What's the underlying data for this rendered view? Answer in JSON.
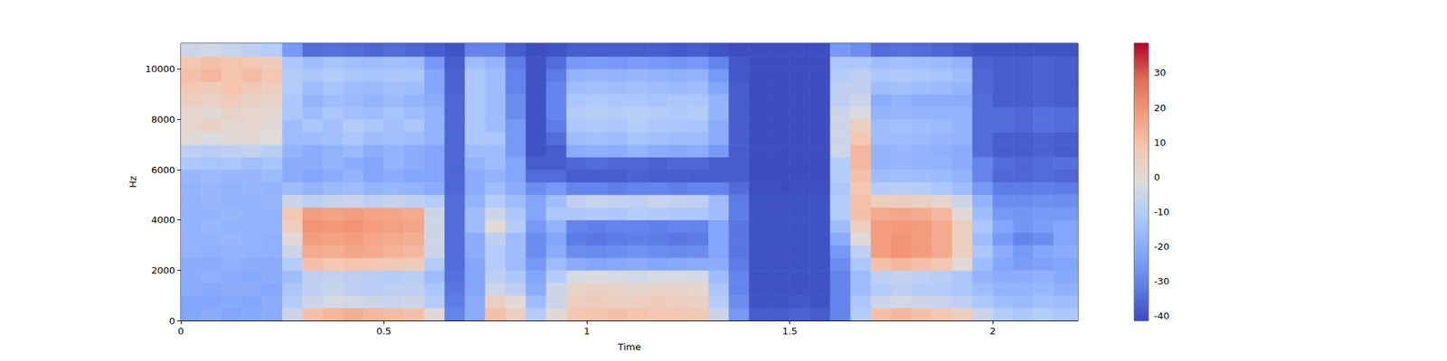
{
  "chart_data": {
    "type": "heatmap",
    "x_label": "Time",
    "y_label": "Hz",
    "x": [
      0,
      0.05,
      0.1,
      0.15,
      0.2,
      0.25,
      0.3,
      0.35,
      0.4,
      0.45,
      0.5,
      0.55,
      0.6,
      0.65,
      0.7,
      0.75,
      0.8,
      0.85,
      0.9,
      0.95,
      1,
      1.05,
      1.1,
      1.15,
      1.2,
      1.25,
      1.3,
      1.35,
      1.4,
      1.45,
      1.5,
      1.55,
      1.6,
      1.65,
      1.7,
      1.75,
      1.8,
      1.85,
      1.9,
      1.95,
      2,
      2.05,
      2.1,
      2.15,
      2.21
    ],
    "y": [
      0,
      500,
      1000,
      1500,
      2000,
      2500,
      3000,
      3500,
      4000,
      4500,
      5000,
      5500,
      6000,
      6500,
      7000,
      7500,
      8000,
      8500,
      9000,
      9500,
      10000,
      10500,
      11025
    ],
    "z": [
      [
        -22,
        -20,
        -22,
        -21,
        -20,
        -5,
        10,
        12,
        14,
        12,
        11,
        10,
        0,
        -30,
        -20,
        10,
        5,
        -10,
        0,
        8,
        9,
        10,
        9,
        8,
        8,
        7,
        -5,
        -25,
        -38,
        -38,
        -37,
        -38,
        -30,
        -10,
        10,
        12,
        10,
        8,
        5,
        -5,
        -10,
        -12,
        -10,
        -12
      ],
      [
        -22,
        -22,
        -21,
        -22,
        -20,
        -10,
        -5,
        -3,
        -4,
        -5,
        -6,
        -5,
        -10,
        -32,
        -20,
        5,
        0,
        -15,
        -5,
        5,
        6,
        5,
        5,
        6,
        5,
        4,
        -10,
        -28,
        -40,
        -40,
        -39,
        -40,
        -30,
        -12,
        -5,
        -4,
        -5,
        -6,
        -8,
        -12,
        -15,
        -16,
        -14,
        -15
      ],
      [
        -20,
        -21,
        -20,
        -20,
        -21,
        -12,
        -8,
        -6,
        -8,
        -9,
        -8,
        -8,
        -12,
        -33,
        -22,
        -5,
        -8,
        -20,
        -5,
        3,
        4,
        3,
        2,
        3,
        3,
        2,
        -12,
        -30,
        -40,
        -40,
        -40,
        -40,
        -30,
        -15,
        -10,
        -8,
        -10,
        -10,
        -12,
        -15,
        -18,
        -18,
        -17,
        -19
      ],
      [
        -20,
        -19,
        -20,
        -21,
        -20,
        -15,
        -8,
        -7,
        -8,
        -9,
        -10,
        -9,
        -15,
        -34,
        -22,
        -8,
        -12,
        -22,
        -10,
        -3,
        -2,
        -3,
        -4,
        -3,
        -3,
        -4,
        -15,
        -30,
        -40,
        -40,
        -40,
        -40,
        -30,
        -15,
        -8,
        -7,
        -8,
        -9,
        -12,
        -18,
        -20,
        -20,
        -19,
        -21
      ],
      [
        -20,
        -20,
        -19,
        -20,
        -20,
        -10,
        10,
        8,
        9,
        8,
        7,
        6,
        -10,
        -35,
        -22,
        -10,
        -15,
        -25,
        -15,
        -20,
        -22,
        -21,
        -20,
        -22,
        -21,
        -20,
        -20,
        -32,
        -40,
        -40,
        -40,
        -40,
        -28,
        -12,
        10,
        12,
        10,
        8,
        0,
        -15,
        -22,
        -24,
        -23,
        -22
      ],
      [
        -18,
        -19,
        -18,
        -18,
        -19,
        -5,
        15,
        14,
        16,
        15,
        13,
        12,
        -5,
        -35,
        -20,
        -10,
        -15,
        -28,
        -20,
        -28,
        -29,
        -28,
        -27,
        -28,
        -29,
        -28,
        -22,
        -33,
        -40,
        -40,
        -40,
        -40,
        -25,
        -8,
        18,
        20,
        18,
        15,
        5,
        -12,
        -20,
        -25,
        -22,
        -20
      ],
      [
        -18,
        -18,
        -17,
        -18,
        -19,
        0,
        18,
        17,
        18,
        16,
        15,
        14,
        -5,
        -35,
        -20,
        -8,
        -15,
        -28,
        -22,
        -32,
        -33,
        -32,
        -31,
        -32,
        -33,
        -32,
        -22,
        -33,
        -40,
        -40,
        -40,
        -40,
        -20,
        0,
        18,
        20,
        18,
        15,
        5,
        -15,
        -25,
        -30,
        -28,
        -22
      ],
      [
        -18,
        -17,
        -18,
        -18,
        -18,
        5,
        20,
        19,
        20,
        18,
        17,
        16,
        -5,
        -35,
        -15,
        0,
        -10,
        -25,
        -18,
        -30,
        -31,
        -30,
        -30,
        -31,
        -30,
        -30,
        -22,
        -33,
        -40,
        -40,
        -40,
        -40,
        -15,
        5,
        18,
        19,
        18,
        15,
        5,
        -12,
        -22,
        -26,
        -24,
        -22
      ],
      [
        -18,
        -18,
        -17,
        -18,
        -18,
        8,
        18,
        17,
        18,
        17,
        16,
        15,
        -5,
        -35,
        -15,
        -5,
        -12,
        -22,
        -12,
        -12,
        -11,
        -12,
        -10,
        -11,
        -12,
        -12,
        -15,
        -32,
        -40,
        -40,
        -40,
        -40,
        -10,
        10,
        15,
        16,
        15,
        12,
        0,
        -15,
        -25,
        -26,
        -25,
        -25
      ],
      [
        -18,
        -17,
        -18,
        -18,
        -17,
        -5,
        -8,
        -6,
        -5,
        -8,
        -6,
        -8,
        -10,
        -35,
        -18,
        -10,
        -15,
        -22,
        -15,
        -8,
        -6,
        -7,
        -8,
        -6,
        -7,
        -8,
        -15,
        -32,
        -40,
        -40,
        -40,
        -40,
        -10,
        10,
        5,
        6,
        4,
        2,
        -5,
        -18,
        -28,
        -28,
        -27,
        -28
      ],
      [
        -18,
        -17,
        -18,
        -17,
        -18,
        -15,
        -18,
        -16,
        -15,
        -18,
        -17,
        -18,
        -20,
        -36,
        -20,
        -15,
        -20,
        -28,
        -25,
        -30,
        -30,
        -31,
        -30,
        -30,
        -31,
        -30,
        -30,
        -35,
        -41,
        -41,
        -41,
        -41,
        -12,
        8,
        -10,
        -9,
        -10,
        -12,
        -15,
        -25,
        -32,
        -32,
        -31,
        -32
      ],
      [
        -17,
        -16,
        -17,
        -17,
        -16,
        -20,
        -22,
        -20,
        -18,
        -22,
        -20,
        -22,
        -22,
        -36,
        -20,
        -18,
        -22,
        -35,
        -35,
        -38,
        -38,
        -38,
        -37,
        -38,
        -38,
        -38,
        -38,
        -38,
        -41,
        -41,
        -41,
        -41,
        -10,
        10,
        -15,
        -14,
        -15,
        -16,
        -18,
        -30,
        -36,
        -36,
        -35,
        -36
      ],
      [
        -12,
        -13,
        -12,
        -14,
        -13,
        -20,
        -20,
        -18,
        -20,
        -22,
        -18,
        -20,
        -22,
        -36,
        -18,
        -15,
        -22,
        -38,
        -38,
        -36,
        -35,
        -36,
        -36,
        -37,
        -36,
        -36,
        -38,
        -38,
        -41,
        -41,
        -41,
        -41,
        -10,
        12,
        -18,
        -17,
        -18,
        -18,
        -20,
        -30,
        -35,
        -36,
        -35,
        -34
      ],
      [
        -8,
        -9,
        -8,
        -7,
        -9,
        -18,
        -20,
        -18,
        -16,
        -20,
        -18,
        -20,
        -22,
        -36,
        -15,
        -15,
        -25,
        -40,
        -38,
        -20,
        -19,
        -20,
        -18,
        -20,
        -21,
        -20,
        -25,
        -38,
        -41,
        -41,
        -41,
        -41,
        -5,
        12,
        -18,
        -17,
        -18,
        -19,
        -20,
        -35,
        -38,
        -38,
        -37,
        -38
      ],
      [
        0,
        -2,
        0,
        1,
        -1,
        -15,
        -15,
        -14,
        -12,
        -15,
        -14,
        -15,
        -18,
        -36,
        -12,
        -12,
        -25,
        -40,
        -35,
        -15,
        -14,
        -15,
        -13,
        -14,
        -15,
        -15,
        -20,
        -38,
        -41,
        -41,
        -41,
        -41,
        -5,
        8,
        -15,
        -15,
        -16,
        -17,
        -18,
        -35,
        -38,
        -38,
        -37,
        -38
      ],
      [
        2,
        4,
        1,
        2,
        0,
        -15,
        -12,
        -14,
        -10,
        -12,
        -14,
        -12,
        -18,
        -36,
        -12,
        -15,
        -25,
        -40,
        -32,
        -12,
        -11,
        -12,
        -10,
        -12,
        -12,
        -13,
        -20,
        -38,
        -41,
        -41,
        -41,
        -41,
        -5,
        5,
        -15,
        -14,
        -15,
        -16,
        -18,
        -35,
        -35,
        -36,
        -34,
        -35
      ],
      [
        2,
        0,
        3,
        2,
        1,
        -12,
        -15,
        -12,
        -14,
        -15,
        -13,
        -15,
        -18,
        -36,
        -12,
        -15,
        -28,
        -40,
        -30,
        -10,
        -9,
        -10,
        -9,
        -10,
        -11,
        -10,
        -18,
        -38,
        -41,
        -41,
        -41,
        -41,
        -5,
        -2,
        -18,
        -17,
        -18,
        -18,
        -18,
        -35,
        -35,
        -36,
        -34,
        -35
      ],
      [
        5,
        3,
        6,
        4,
        3,
        -12,
        -18,
        -15,
        -16,
        -18,
        -16,
        -18,
        -20,
        -36,
        -12,
        -15,
        -28,
        -40,
        -30,
        -12,
        -11,
        -12,
        -12,
        -13,
        -12,
        -12,
        -18,
        -38,
        -41,
        -41,
        -41,
        -41,
        -8,
        -5,
        -20,
        -18,
        -20,
        -20,
        -20,
        -35,
        -38,
        -38,
        -37,
        -38
      ],
      [
        8,
        6,
        9,
        7,
        5,
        -10,
        -15,
        -13,
        -15,
        -16,
        -14,
        -15,
        -22,
        -37,
        -12,
        -15,
        -30,
        -40,
        -30,
        -15,
        -14,
        -15,
        -14,
        -15,
        -16,
        -15,
        -22,
        -38,
        -41,
        -41,
        -41,
        -41,
        -8,
        -8,
        -15,
        -14,
        -15,
        -16,
        -18,
        -36,
        -38,
        -38,
        -37,
        -38
      ],
      [
        10,
        12,
        9,
        11,
        8,
        -10,
        -12,
        -10,
        -12,
        -13,
        -12,
        -12,
        -22,
        -37,
        -12,
        -15,
        -30,
        -40,
        -32,
        -18,
        -17,
        -18,
        -17,
        -18,
        -19,
        -18,
        -25,
        -39,
        -41,
        -41,
        -41,
        -41,
        -10,
        -8,
        -12,
        -11,
        -12,
        -13,
        -15,
        -36,
        -38,
        -38,
        -37,
        -38
      ],
      [
        8,
        10,
        9,
        8,
        6,
        -12,
        -15,
        -13,
        -14,
        -15,
        -14,
        -15,
        -25,
        -38,
        -15,
        -18,
        -32,
        -40,
        -35,
        -25,
        -24,
        -25,
        -24,
        -25,
        -26,
        -25,
        -30,
        -39,
        -41,
        -41,
        -41,
        -41,
        -12,
        -12,
        -15,
        -14,
        -15,
        -16,
        -18,
        -37,
        -38,
        -38,
        -37,
        -38
      ],
      [
        -5,
        -4,
        -6,
        -8,
        -10,
        -25,
        -35,
        -34,
        -35,
        -36,
        -35,
        -36,
        -38,
        -40,
        -30,
        -30,
        -38,
        -41,
        -40,
        -38,
        -38,
        -38,
        -38,
        -38,
        -39,
        -38,
        -40,
        -41,
        -41,
        -41,
        -41,
        -41,
        -25,
        -28,
        -35,
        -34,
        -35,
        -36,
        -38,
        -40,
        -40,
        -40,
        -40,
        -40
      ]
    ],
    "xlim": [
      0,
      2.21
    ],
    "ylim": [
      0,
      11025
    ],
    "xticks": [
      0,
      0.5,
      1,
      1.5,
      2
    ],
    "yticks": [
      0,
      2000,
      4000,
      6000,
      8000,
      10000
    ],
    "colorbar": {
      "range": [
        -41.3,
        38.5
      ],
      "ticks": [
        -40,
        -30,
        -20,
        -10,
        0,
        10,
        20,
        30
      ]
    }
  }
}
